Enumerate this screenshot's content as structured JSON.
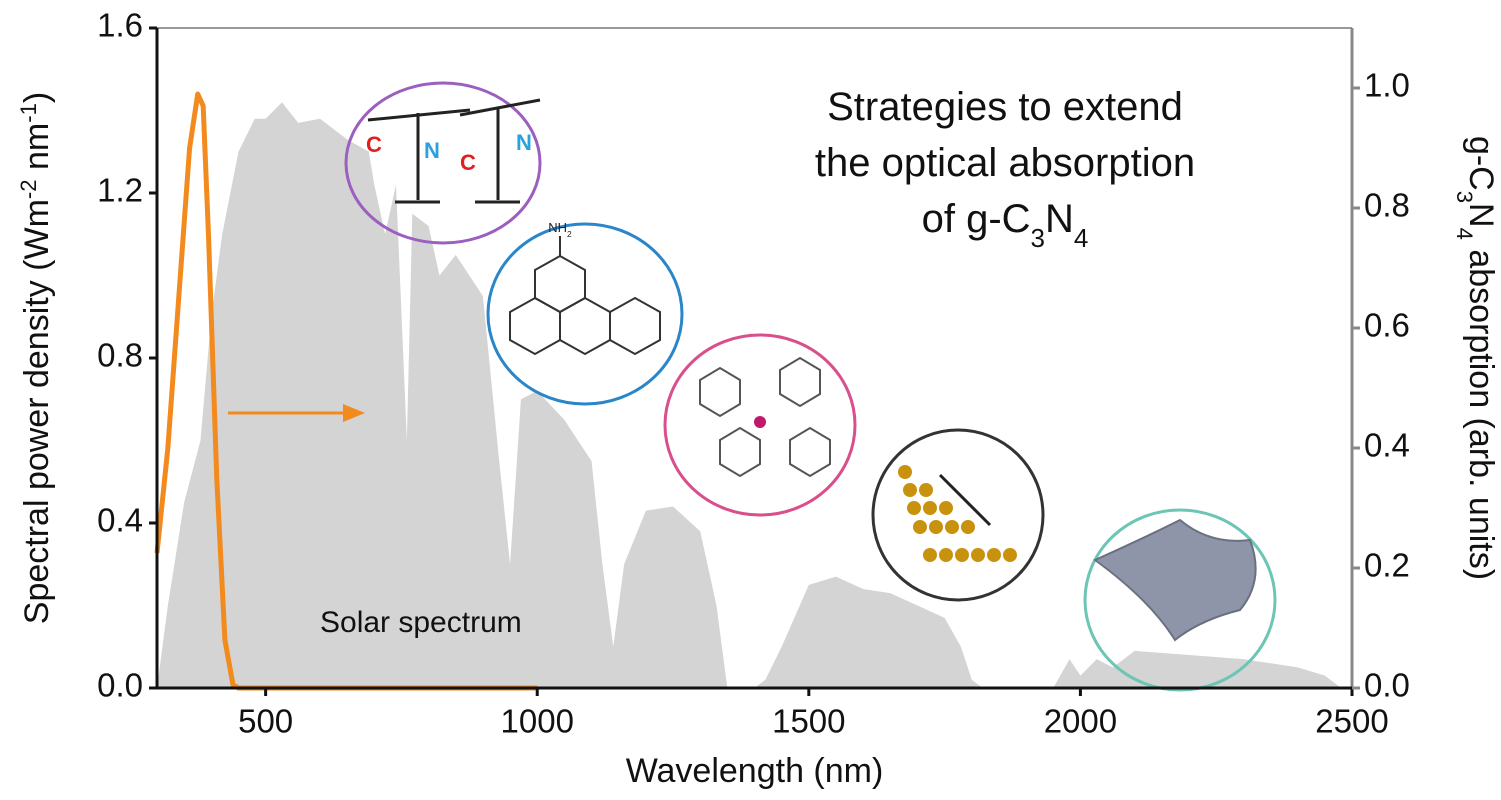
{
  "chart_data": {
    "type": "area-line",
    "annotation_lines": [
      "Strategies to extend",
      "the optical absorption"
    ],
    "annotation_formula": [
      "of g-C",
      "3",
      "N",
      "4"
    ],
    "xlabel": "Wavelength (nm)",
    "ylabel": [
      "Spectral power density (Wm",
      "-2",
      " nm",
      "-1",
      ")"
    ],
    "y2label": [
      "g-C",
      "3",
      "N",
      "4",
      " absorption (arb. units)"
    ],
    "icon_labels": [
      "C",
      "N",
      "C",
      "N"
    ],
    "molecule_label": [
      "NH",
      "2"
    ],
    "xlim": [
      300,
      2500
    ],
    "xticks": [
      500,
      1000,
      1500,
      2000,
      2500
    ],
    "ylim": [
      0,
      1.6
    ],
    "yticks": [
      {
        "value": 0,
        "label": "0.0"
      },
      0.4,
      0.8,
      1.2,
      1.6
    ],
    "y2lim": [
      0,
      1.1
    ],
    "y2ticks": [
      {
        "value": 0,
        "label": "0.0"
      },
      0.2,
      0.4,
      0.6,
      0.8,
      {
        "value": 1,
        "label": "1.0"
      }
    ],
    "series": [
      {
        "name": "Solar spectrum",
        "color": "#d4d4d4",
        "kind": "area",
        "x": [
          300,
          320,
          350,
          380,
          400,
          420,
          450,
          480,
          500,
          530,
          560,
          600,
          650,
          690,
          700,
          720,
          740,
          760,
          770,
          800,
          820,
          850,
          900,
          930,
          950,
          970,
          1000,
          1050,
          1100,
          1120,
          1140,
          1160,
          1200,
          1250,
          1300,
          1330,
          1350,
          1400,
          1420,
          1450,
          1500,
          1550,
          1600,
          1650,
          1700,
          1750,
          1780,
          1800,
          1820,
          1950,
          1980,
          2000,
          2030,
          2060,
          2100,
          2200,
          2300,
          2400,
          2450,
          2480
        ],
        "values": [
          0,
          0.2,
          0.45,
          0.6,
          0.9,
          1.1,
          1.3,
          1.38,
          1.38,
          1.42,
          1.37,
          1.38,
          1.33,
          1.3,
          1.22,
          1.1,
          1.22,
          0.6,
          1.15,
          1.12,
          1.0,
          1.05,
          0.95,
          0.55,
          0.3,
          0.7,
          0.72,
          0.65,
          0.55,
          0.3,
          0.1,
          0.3,
          0.43,
          0.44,
          0.38,
          0.2,
          0,
          0,
          0.02,
          0.1,
          0.25,
          0.27,
          0.24,
          0.23,
          0.2,
          0.17,
          0.1,
          0.02,
          0,
          0,
          0.07,
          0.03,
          0.07,
          0.05,
          0.09,
          0.08,
          0.07,
          0.05,
          0.03,
          0
        ]
      },
      {
        "color": "#f28a1e",
        "kind": "line",
        "axis": "y2",
        "x": [
          300,
          320,
          340,
          360,
          375,
          385,
          395,
          410,
          425,
          440,
          450,
          600,
          800,
          1000
        ],
        "values": [
          0.225,
          0.4,
          0.65,
          0.9,
          0.99,
          0.97,
          0.75,
          0.35,
          0.08,
          0.005,
          0,
          0,
          0,
          0
        ]
      }
    ]
  }
}
